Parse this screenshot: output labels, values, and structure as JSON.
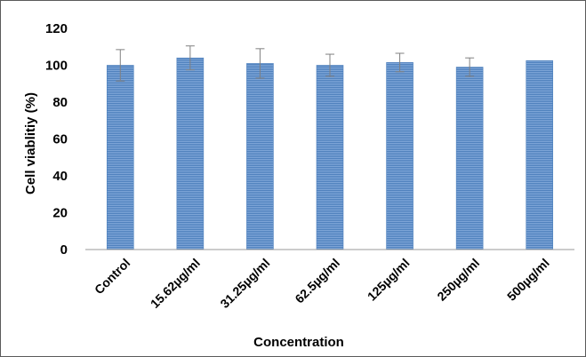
{
  "chart_data": {
    "type": "bar",
    "title": "",
    "xlabel": "Concentration",
    "ylabel": "Cell viablitiy (%)",
    "categories": [
      "Control",
      "15.62µg/ml",
      "31.25µg/ml",
      "62.5µg/ml",
      "125µg/ml",
      "250µg/ml",
      "500µg/ml"
    ],
    "values": [
      100,
      104,
      101,
      100,
      101.5,
      99,
      102.5
    ],
    "errors": [
      8.5,
      6.5,
      8,
      6,
      5,
      5,
      null
    ],
    "ylim": [
      0,
      120
    ],
    "yticks": [
      "0",
      "20",
      "40",
      "60",
      "80",
      "100",
      "120"
    ],
    "grid": false,
    "legend": "none",
    "colors": {
      "bar_fill": "#4f81bd",
      "bar_stripe": "#7fa6d8",
      "error_bar": "#808080",
      "axis": "#9a9a9a"
    }
  }
}
